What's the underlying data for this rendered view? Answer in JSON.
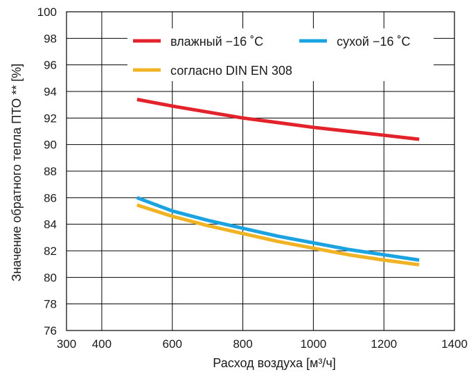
{
  "chart_data": {
    "type": "line",
    "xlabel": "Расход воздуха [м³/ч]",
    "ylabel": "Значение обратного тепла ПТО ** [%]",
    "xlim": [
      300,
      1400
    ],
    "ylim": [
      76,
      100
    ],
    "x_ticks": [
      300,
      400,
      600,
      800,
      1000,
      1200,
      1400
    ],
    "y_ticks": [
      76,
      78,
      80,
      82,
      84,
      86,
      88,
      90,
      92,
      94,
      96,
      98,
      100
    ],
    "grid": true,
    "legend_position": "top-right",
    "series": [
      {
        "name": "влажный −16 ˚C",
        "color": "#e3232b",
        "x": [
          500,
          600,
          700,
          800,
          900,
          1000,
          1100,
          1200,
          1300
        ],
        "y": [
          93.4,
          92.9,
          92.45,
          92.0,
          91.65,
          91.3,
          91.0,
          90.7,
          90.4
        ]
      },
      {
        "name": "сухой −16 ˚C",
        "color": "#1aa3e0",
        "x": [
          500,
          600,
          700,
          800,
          900,
          1000,
          1100,
          1200,
          1300
        ],
        "y": [
          86.0,
          85.0,
          84.3,
          83.7,
          83.1,
          82.6,
          82.1,
          81.7,
          81.3
        ]
      },
      {
        "name": "согласно DIN EN 308",
        "color": "#f0b323",
        "x": [
          500,
          600,
          700,
          800,
          900,
          1000,
          1100,
          1200,
          1300
        ],
        "y": [
          85.45,
          84.6,
          83.9,
          83.3,
          82.7,
          82.2,
          81.7,
          81.3,
          80.95
        ]
      }
    ]
  }
}
